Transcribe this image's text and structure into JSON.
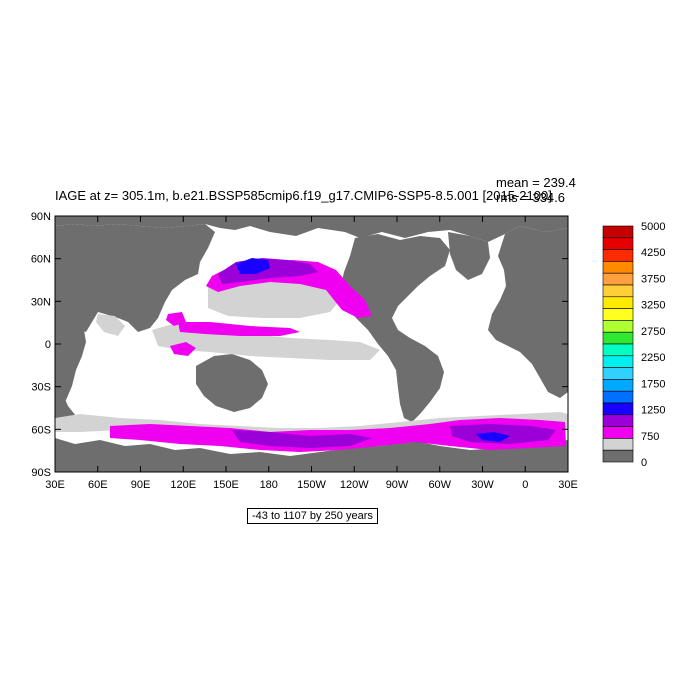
{
  "map": {
    "title": "IAGE at z= 305.1m, b.e21.BSSP585cmip6.f19_g17.CMIP6-SSP5-8.5.001 [2015-2100]",
    "mean_label": "mean = 239.4",
    "rms_label": "rms = 334.6",
    "range_label": "-43 to 1107 by 250 years",
    "lat_ticks": [
      "90N",
      "60N",
      "30N",
      "0",
      "30S",
      "60S",
      "90S"
    ],
    "lon_ticks": [
      "30E",
      "60E",
      "90E",
      "120E",
      "150E",
      "180",
      "150W",
      "120W",
      "90W",
      "60W",
      "30W",
      "0",
      "30E"
    ],
    "colors": {
      "land": "#6e6e6e",
      "low": "#d3d3d3",
      "magenta": "#f000f0",
      "purple": "#9b00d8",
      "blue": "#1a00ff"
    }
  },
  "colorbar": {
    "labels": [
      "5000",
      "4250",
      "3750",
      "3250",
      "2750",
      "2250",
      "1750",
      "1250",
      "750",
      "0"
    ],
    "colors": [
      "#c40000",
      "#e60000",
      "#ff2a00",
      "#ff8a00",
      "#ffa040",
      "#ffcf3a",
      "#ffea00",
      "#ffff20",
      "#b0ff30",
      "#30e830",
      "#00ffc0",
      "#00f0f0",
      "#30d0ff",
      "#00a8ff",
      "#0070ff",
      "#1a00ff",
      "#9b00d8",
      "#f000f0",
      "#d3d3d3",
      "#6e6e6e"
    ]
  }
}
